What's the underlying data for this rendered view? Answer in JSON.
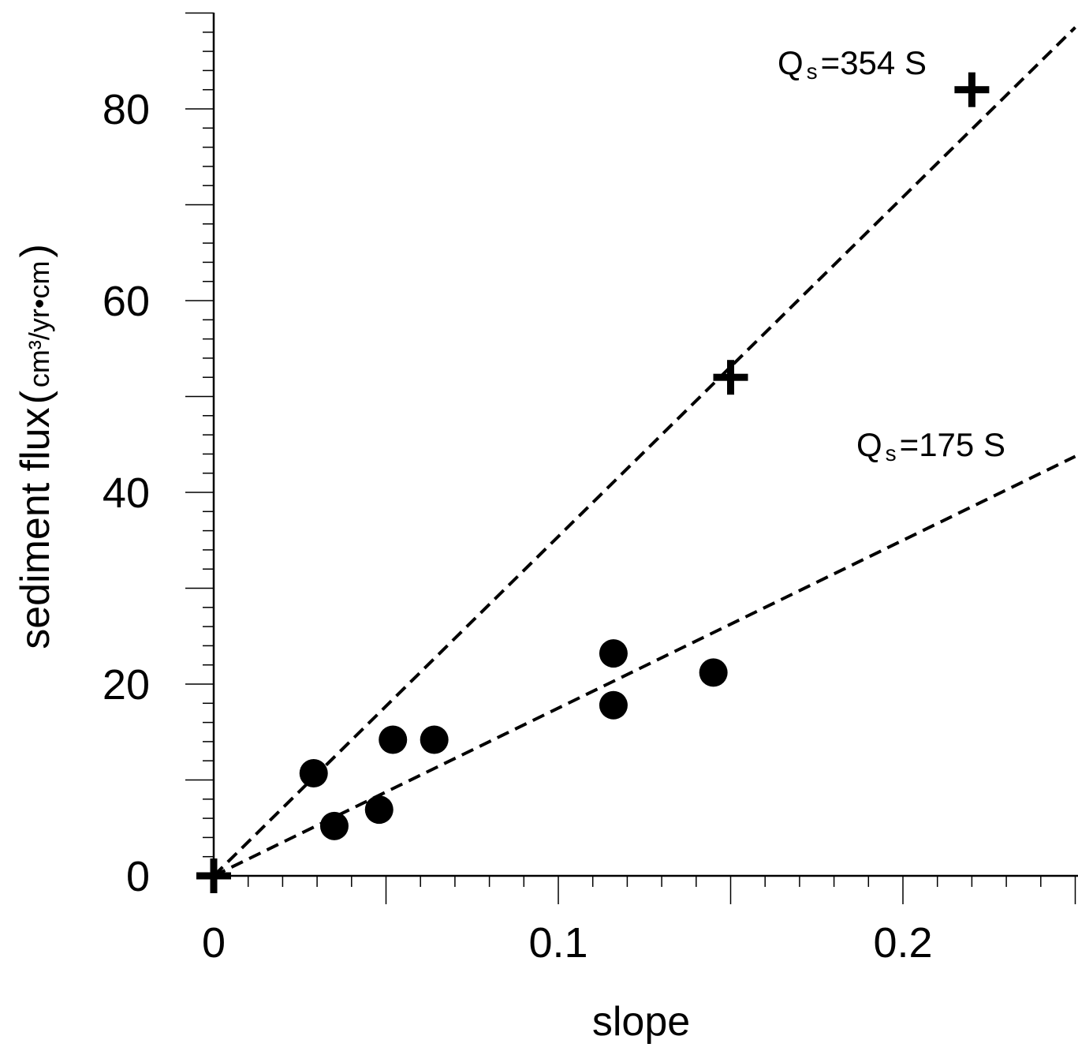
{
  "chart_data": {
    "type": "scatter",
    "title": "",
    "xlabel": "slope",
    "ylabel": "sediment flux",
    "ylabel_units": "cm³/yr•cm",
    "xlim": [
      0,
      0.25
    ],
    "ylim": [
      0,
      90
    ],
    "x_ticks": [
      0,
      0.1,
      0.2
    ],
    "x_tick_labels": [
      "0",
      "0.1",
      "0.2"
    ],
    "x_minor_step": 0.01,
    "y_ticks": [
      0,
      20,
      40,
      60,
      80
    ],
    "y_tick_labels": [
      "0",
      "20",
      "40",
      "60",
      "80"
    ],
    "y_minor_step": 2,
    "grid": false,
    "series": [
      {
        "marker": "circle",
        "points": [
          {
            "x": 0.029,
            "y": 10.7
          },
          {
            "x": 0.035,
            "y": 5.2
          },
          {
            "x": 0.048,
            "y": 6.9
          },
          {
            "x": 0.052,
            "y": 14.2
          },
          {
            "x": 0.064,
            "y": 14.2
          },
          {
            "x": 0.116,
            "y": 23.2
          },
          {
            "x": 0.116,
            "y": 17.8
          },
          {
            "x": 0.145,
            "y": 21.2
          }
        ]
      },
      {
        "marker": "plus",
        "points": [
          {
            "x": 0.0,
            "y": 0.0
          },
          {
            "x": 0.15,
            "y": 52.0
          },
          {
            "x": 0.22,
            "y": 82.0
          }
        ]
      }
    ],
    "fit_lines": [
      {
        "slope": 354,
        "intercept": 0,
        "x_end": 0.25,
        "label_main": "Q",
        "label_sub": "s",
        "label_rest": "=354 S"
      },
      {
        "slope": 175,
        "intercept": 0,
        "x_end": 0.25,
        "label_main": "Q",
        "label_sub": "s",
        "label_rest": "=175 S"
      }
    ]
  }
}
